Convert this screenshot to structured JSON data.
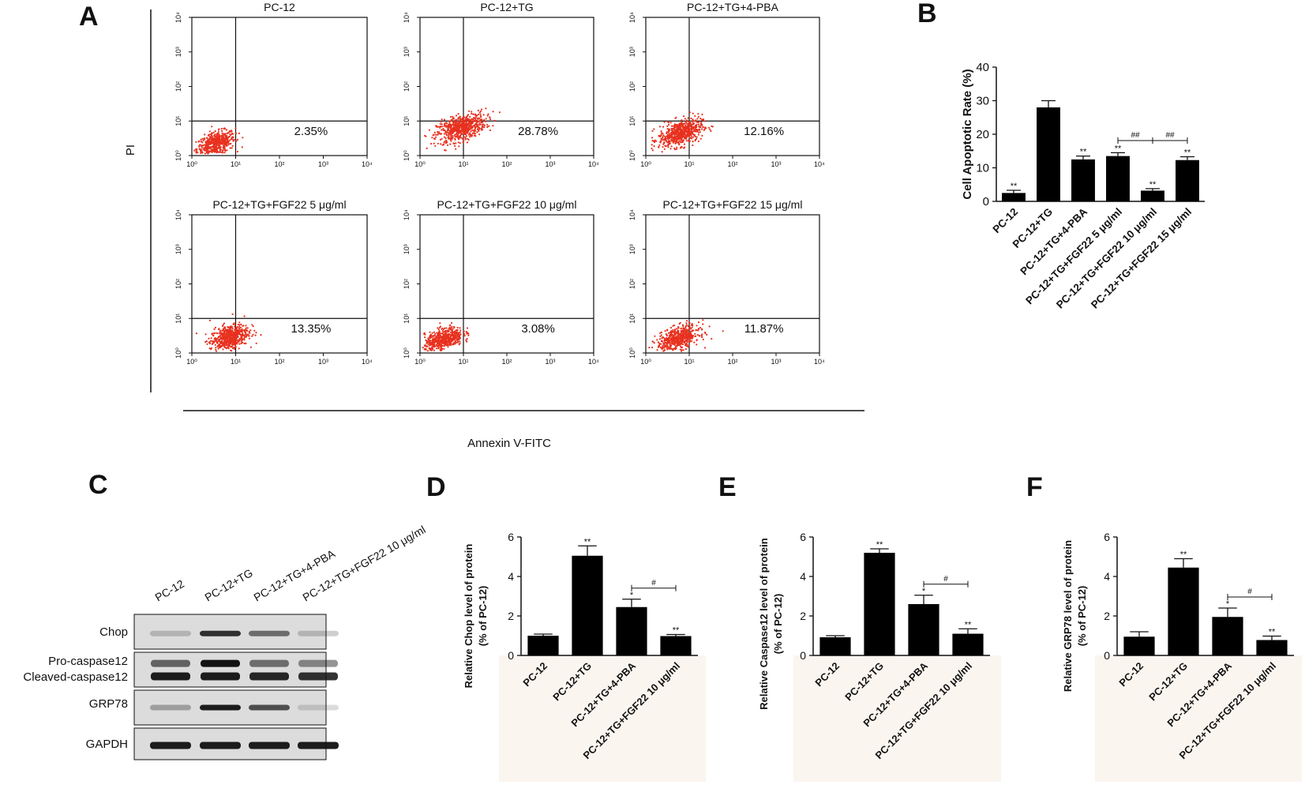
{
  "panel_letters": {
    "a": "A",
    "b": "B",
    "c": "C",
    "d": "D",
    "e": "E",
    "f": "F"
  },
  "colors": {
    "dots": "#e8311f",
    "bars": "#000000",
    "shade": "#fbf5ef"
  },
  "flow": {
    "y_axis_label": "PI",
    "x_axis_label": "Annexin V-FITC",
    "tick_labels": [
      "10⁰",
      "10¹",
      "10²",
      "10³",
      "10⁴"
    ]
  },
  "blot": {
    "lanes": [
      "PC-12",
      "PC-12+TG",
      "PC-12+TG+4-PBA",
      "PC-12+TG+FGF22 10 μg/ml"
    ],
    "rows": [
      "Chop",
      "Pro-caspase12",
      "Cleaved-caspase12",
      "GRP78",
      "GAPDH"
    ]
  },
  "chart_data": [
    {
      "type": "scatter",
      "panel": "A",
      "title": "PC-12",
      "value_label": "2.35%",
      "xlabel": "Annexin V-FITC",
      "ylabel": "PI",
      "xlim": [
        0,
        4
      ],
      "ylim": [
        0,
        4
      ],
      "scale": "log10",
      "gates": {
        "x": 1.0,
        "y": 1.0
      },
      "cluster": {
        "cx": 0.55,
        "cy": 0.35,
        "sx": 0.22,
        "sy": 0.16,
        "n": 520
      }
    },
    {
      "type": "scatter",
      "panel": "A",
      "title": "PC-12+TG",
      "value_label": "28.78%",
      "xlabel": "Annexin V-FITC",
      "ylabel": "PI",
      "xlim": [
        0,
        4
      ],
      "ylim": [
        0,
        4
      ],
      "scale": "log10",
      "gates": {
        "x": 1.0,
        "y": 1.0
      },
      "cluster": {
        "cx": 0.95,
        "cy": 0.8,
        "sx": 0.28,
        "sy": 0.18,
        "n": 650
      }
    },
    {
      "type": "scatter",
      "panel": "A",
      "title": "PC-12+TG+4-PBA",
      "value_label": "12.16%",
      "xlabel": "Annexin V-FITC",
      "ylabel": "PI",
      "xlim": [
        0,
        4
      ],
      "ylim": [
        0,
        4
      ],
      "scale": "log10",
      "gates": {
        "x": 1.0,
        "y": 1.0
      },
      "cluster": {
        "cx": 0.8,
        "cy": 0.65,
        "sx": 0.25,
        "sy": 0.18,
        "n": 600
      }
    },
    {
      "type": "scatter",
      "panel": "A",
      "title": "PC-12+TG+FGF22 5 μg/ml",
      "value_label": "13.35%",
      "xlabel": "Annexin V-FITC",
      "ylabel": "PI",
      "xlim": [
        0,
        4
      ],
      "ylim": [
        0,
        4
      ],
      "scale": "log10",
      "gates": {
        "x": 1.0,
        "y": 1.0
      },
      "cluster": {
        "cx": 0.85,
        "cy": 0.45,
        "sx": 0.22,
        "sy": 0.18,
        "n": 560
      }
    },
    {
      "type": "scatter",
      "panel": "A",
      "title": "PC-12+TG+FGF22 10 μg/ml",
      "value_label": "3.08%",
      "xlabel": "Annexin V-FITC",
      "ylabel": "PI",
      "xlim": [
        0,
        4
      ],
      "ylim": [
        0,
        4
      ],
      "scale": "log10",
      "gates": {
        "x": 1.0,
        "y": 1.0
      },
      "cluster": {
        "cx": 0.55,
        "cy": 0.4,
        "sx": 0.22,
        "sy": 0.15,
        "n": 540
      }
    },
    {
      "type": "scatter",
      "panel": "A",
      "title": "PC-12+TG+FGF22 15 μg/ml",
      "value_label": "11.87%",
      "xlabel": "Annexin V-FITC",
      "ylabel": "PI",
      "xlim": [
        0,
        4
      ],
      "ylim": [
        0,
        4
      ],
      "scale": "log10",
      "gates": {
        "x": 1.0,
        "y": 1.0
      },
      "cluster": {
        "cx": 0.75,
        "cy": 0.42,
        "sx": 0.24,
        "sy": 0.16,
        "n": 560
      }
    },
    {
      "type": "bar",
      "panel": "B",
      "categories": [
        "PC-12",
        "PC-12+TG",
        "PC-12+TG+4-PBA",
        "PC-12+TG+FGF22 5 μg/ml",
        "PC-12+TG+FGF22 10 μg/ml",
        "PC-12+TG+FGF22 15 μg/ml"
      ],
      "values": [
        2.5,
        28,
        12.5,
        13.5,
        3.2,
        12.3
      ],
      "errors": [
        0.8,
        2.0,
        1.0,
        1.0,
        0.6,
        1.0
      ],
      "annotations": [
        "**",
        "",
        "**",
        "**",
        "**",
        "**"
      ],
      "comparisons": [
        {
          "from": 3,
          "to": 4,
          "label": "##"
        },
        {
          "from": 4,
          "to": 5,
          "label": "##"
        }
      ],
      "ylabel": "Cell Apoptotic Rate (%)",
      "xlabel": "",
      "ylim": [
        0,
        40
      ],
      "yticks": [
        0,
        10,
        20,
        30,
        40
      ]
    },
    {
      "type": "bar",
      "panel": "D",
      "categories": [
        "PC-12",
        "PC-12+TG",
        "PC-12+TG+4-PBA",
        "PC-12+TG+FGF22 10 μg/ml"
      ],
      "values": [
        1.0,
        5.05,
        2.45,
        0.98
      ],
      "errors": [
        0.08,
        0.5,
        0.4,
        0.08
      ],
      "annotations": [
        "",
        "**",
        "*",
        "**"
      ],
      "comparisons": [
        {
          "from": 2,
          "to": 3,
          "label": "#"
        }
      ],
      "ylabel": [
        "Relative Chop level of protein",
        "(% of PC-12)"
      ],
      "ylim": [
        0,
        6
      ],
      "yticks": [
        0,
        2,
        4,
        6
      ]
    },
    {
      "type": "bar",
      "panel": "E",
      "categories": [
        "PC-12",
        "PC-12+TG",
        "PC-12+TG+4-PBA",
        "PC-12+TG+FGF22 10 μg/ml"
      ],
      "values": [
        0.92,
        5.2,
        2.6,
        1.1
      ],
      "errors": [
        0.08,
        0.2,
        0.45,
        0.25
      ],
      "annotations": [
        "",
        "**",
        "*",
        "**"
      ],
      "comparisons": [
        {
          "from": 2,
          "to": 3,
          "label": "#"
        }
      ],
      "ylabel": [
        "Relative Caspase12 level of protein",
        "(% of PC-12)"
      ],
      "ylim": [
        0,
        6
      ],
      "yticks": [
        0,
        2,
        4,
        6
      ]
    },
    {
      "type": "bar",
      "panel": "F",
      "categories": [
        "PC-12",
        "PC-12+TG",
        "PC-12+TG+4-PBA",
        "PC-12+TG+FGF22 10 μg/ml"
      ],
      "values": [
        0.95,
        4.45,
        1.95,
        0.78
      ],
      "errors": [
        0.25,
        0.45,
        0.45,
        0.2
      ],
      "annotations": [
        "",
        "**",
        "*",
        "**"
      ],
      "comparisons": [
        {
          "from": 2,
          "to": 3,
          "label": "#"
        }
      ],
      "ylabel": [
        "Relative GRP78 level of protein",
        "(% of PC-12)"
      ],
      "ylim": [
        0,
        6
      ],
      "yticks": [
        0,
        2,
        4,
        6
      ]
    }
  ]
}
